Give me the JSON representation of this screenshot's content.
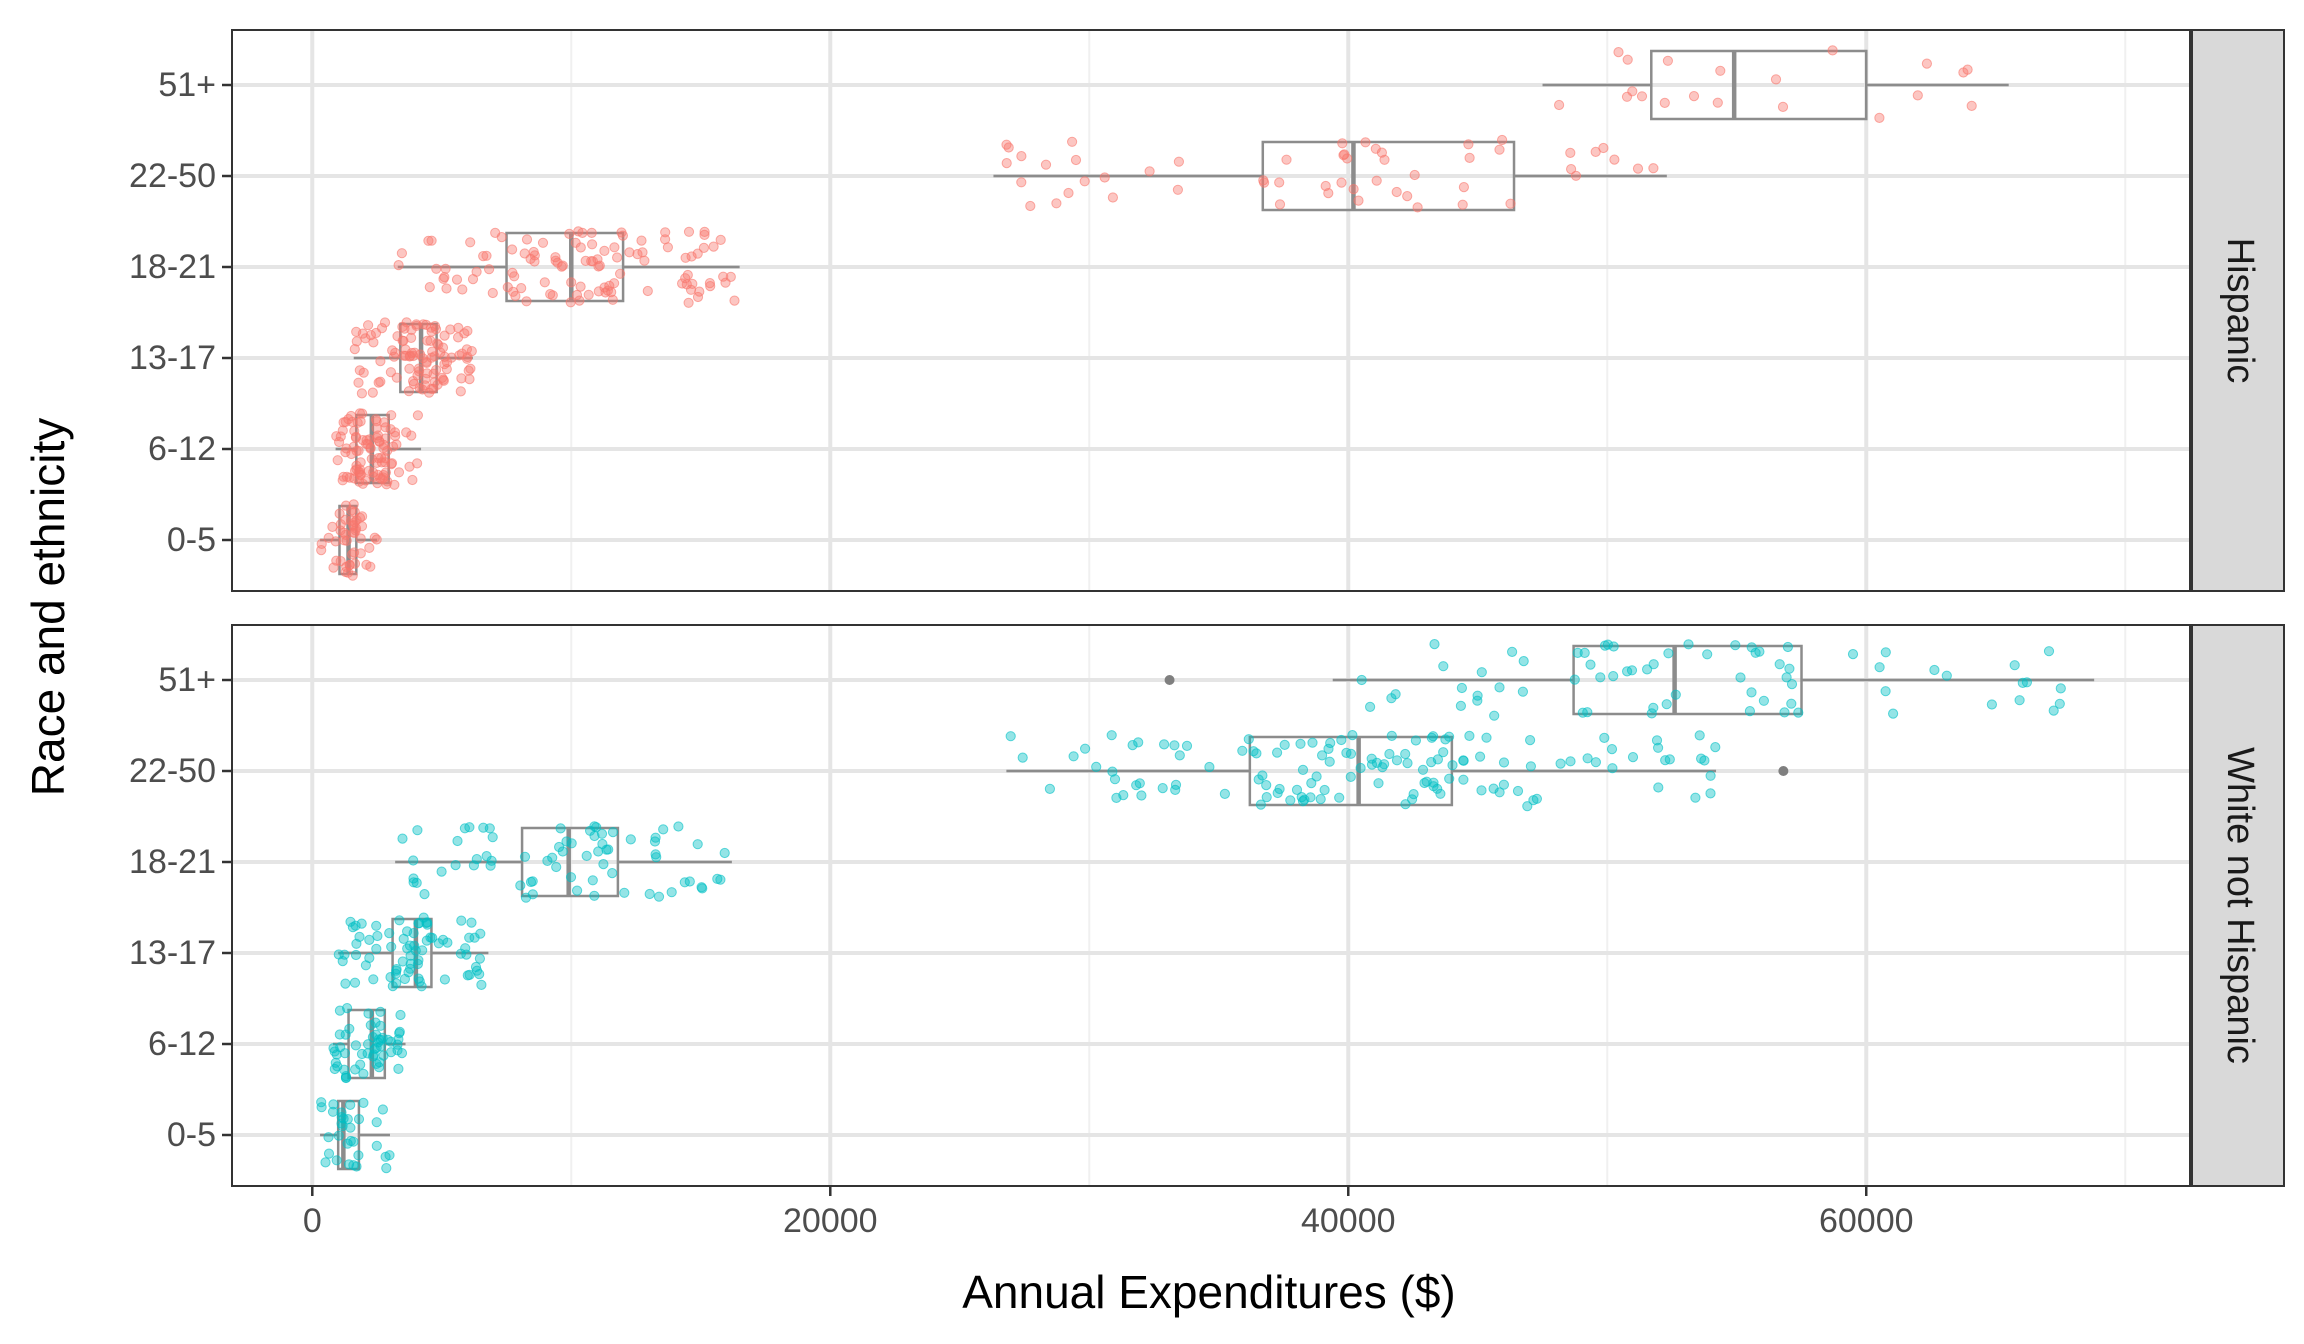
{
  "chart_data": {
    "type": "box-jitter",
    "xlabel": "Annual Expenditures ($)",
    "ylabel": "Race and ethnicity",
    "x_ticks": [
      0,
      20000,
      40000,
      60000
    ],
    "x_tick_labels": [
      "0",
      "20000",
      "40000",
      "60000"
    ],
    "xlim": [
      -3100,
      72500
    ],
    "categories": [
      "0-5",
      "6-12",
      "13-17",
      "18-21",
      "22-50",
      "51+"
    ],
    "grid": true,
    "colors": {
      "Hispanic": "#F8766D",
      "White not Hispanic": "#00BFC4",
      "box": "#8c8c8c",
      "outlier": "#7f7f7f"
    },
    "panels": [
      {
        "name": "Hispanic",
        "boxes": [
          {
            "category": "0-5",
            "min": 300,
            "q1": 1050,
            "median": 1400,
            "q3": 1700,
            "max": 2500,
            "n": 48,
            "outliers": []
          },
          {
            "category": "6-12",
            "min": 900,
            "q1": 1700,
            "median": 2300,
            "q3": 2950,
            "max": 4200,
            "n": 95,
            "outliers": []
          },
          {
            "category": "13-17",
            "min": 1600,
            "q1": 3400,
            "median": 4200,
            "q3": 4800,
            "max": 6200,
            "n": 105,
            "outliers": []
          },
          {
            "category": "18-21",
            "min": 3300,
            "q1": 7500,
            "median": 10000,
            "q3": 12000,
            "max": 16500,
            "n": 110,
            "outliers": []
          },
          {
            "category": "22-50",
            "min": 26300,
            "q1": 36700,
            "median": 40200,
            "q3": 46400,
            "max": 52300,
            "n": 55,
            "outliers": []
          },
          {
            "category": "51+",
            "min": 47500,
            "q1": 51700,
            "median": 54900,
            "q3": 60000,
            "max": 65500,
            "n": 20,
            "outliers": []
          }
        ]
      },
      {
        "name": "White not Hispanic",
        "boxes": [
          {
            "category": "0-5",
            "min": 300,
            "q1": 1000,
            "median": 1200,
            "q3": 1800,
            "max": 3000,
            "n": 32,
            "outliers": []
          },
          {
            "category": "6-12",
            "min": 800,
            "q1": 1400,
            "median": 2300,
            "q3": 2800,
            "max": 3600,
            "n": 55,
            "outliers": []
          },
          {
            "category": "13-17",
            "min": 1000,
            "q1": 3100,
            "median": 4000,
            "q3": 4600,
            "max": 6800,
            "n": 75,
            "outliers": []
          },
          {
            "category": "18-21",
            "min": 3200,
            "q1": 8100,
            "median": 9900,
            "q3": 11800,
            "max": 16200,
            "n": 70,
            "outliers": []
          },
          {
            "category": "22-50",
            "min": 26800,
            "q1": 36200,
            "median": 40400,
            "q3": 44000,
            "max": 54200,
            "n": 130,
            "outliers": [
              56800
            ]
          },
          {
            "category": "51+",
            "min": 39400,
            "q1": 48700,
            "median": 52600,
            "q3": 57500,
            "max": 68800,
            "n": 70,
            "outliers": [
              33100
            ]
          }
        ]
      }
    ]
  }
}
